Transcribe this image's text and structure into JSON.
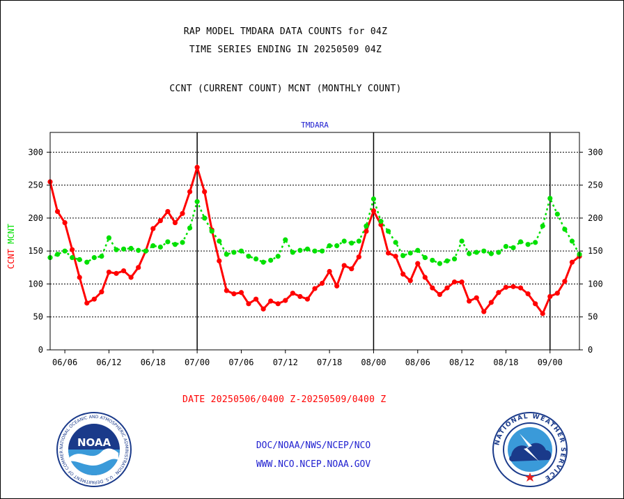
{
  "header": {
    "line1": "RAP MODEL TMDARA DATA COUNTS for 04Z",
    "line2": "TIME SERIES ENDING IN 20250509 04Z",
    "line3": "CCNT (CURRENT COUNT) MCNT (MONTHLY COUNT)"
  },
  "footer": {
    "date_range": "DATE 20250506/0400 Z-20250509/0400 Z",
    "org_path": "DOC/NOAA/NWS/NCEP/NCO",
    "website": "WWW.NCO.NCEP.NOAA.GOV"
  },
  "logos": {
    "noaa_text": "NOAA",
    "noaa_ring_text": "NATIONAL OCEANIC AND ATMOSPHERIC ADMINISTRATION · U.S. DEPARTMENT OF COMMERCE",
    "nws_ring_text": "NATIONAL WEATHER SERVICE"
  },
  "colors": {
    "ccnt": "#ff0000",
    "mcnt": "#00e000",
    "panel_title": "#1f1fd0",
    "footer_text": "#1f1fd0"
  },
  "chart_data": {
    "type": "line",
    "title": "TMDARA",
    "ylabel_left": [
      "CCNT",
      "MCNT"
    ],
    "ylim": [
      0,
      330
    ],
    "yticks": [
      0,
      50,
      100,
      150,
      200,
      250,
      300
    ],
    "grid": "horizontal dotted at y ticks",
    "xticks": [
      {
        "label": "06/06",
        "index": 2
      },
      {
        "label": "06/12",
        "index": 8
      },
      {
        "label": "06/18",
        "index": 14
      },
      {
        "label": "07/00",
        "index": 20
      },
      {
        "label": "07/06",
        "index": 26
      },
      {
        "label": "07/12",
        "index": 32
      },
      {
        "label": "07/18",
        "index": 38
      },
      {
        "label": "08/00",
        "index": 44
      },
      {
        "label": "08/06",
        "index": 50
      },
      {
        "label": "08/12",
        "index": 56
      },
      {
        "label": "08/18",
        "index": 62
      },
      {
        "label": "09/00",
        "index": 68
      }
    ],
    "day_separators": [
      "07/00",
      "08/00",
      "09/00"
    ],
    "x_count": 73,
    "series": [
      {
        "name": "CCNT",
        "style": "solid",
        "values": [
          255,
          210,
          193,
          152,
          110,
          71,
          77,
          88,
          118,
          116,
          120,
          110,
          125,
          150,
          184,
          196,
          210,
          193,
          207,
          240,
          277,
          240,
          182,
          135,
          90,
          85,
          87,
          70,
          77,
          62,
          74,
          70,
          75,
          86,
          81,
          77,
          93,
          101,
          119,
          97,
          128,
          123,
          141,
          180,
          211,
          190,
          147,
          142,
          115,
          105,
          131,
          110,
          94,
          84,
          94,
          103,
          103,
          74,
          79,
          58,
          72,
          87,
          95,
          96,
          94,
          85,
          70,
          55,
          81,
          86,
          104,
          133,
          142
        ]
      },
      {
        "name": "MCNT",
        "style": "dotted",
        "values": [
          140,
          145,
          150,
          140,
          137,
          133,
          140,
          142,
          170,
          152,
          153,
          154,
          151,
          150,
          158,
          156,
          164,
          160,
          163,
          185,
          225,
          200,
          180,
          165,
          145,
          148,
          150,
          142,
          138,
          133,
          136,
          142,
          167,
          148,
          151,
          153,
          150,
          150,
          158,
          158,
          165,
          162,
          165,
          188,
          229,
          195,
          180,
          163,
          143,
          147,
          151,
          140,
          136,
          131,
          135,
          138,
          165,
          146,
          148,
          150,
          146,
          148,
          157,
          155,
          164,
          160,
          163,
          188,
          230,
          206,
          183,
          165,
          145
        ]
      }
    ]
  }
}
